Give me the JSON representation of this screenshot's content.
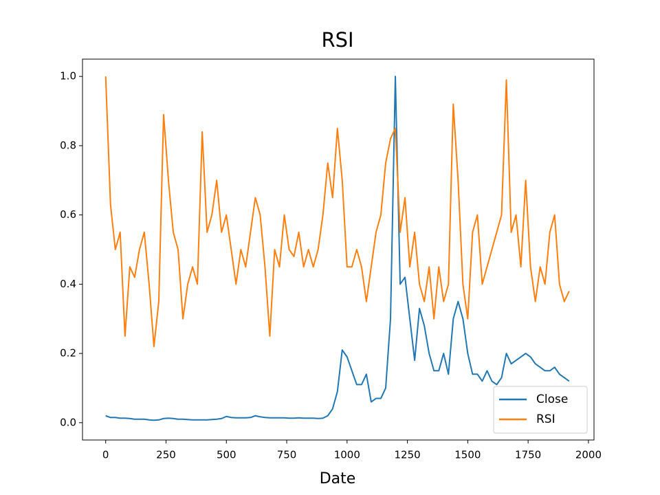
{
  "chart_data": {
    "type": "line",
    "title": "RSI",
    "x_label": "Date",
    "x": [
      0,
      20,
      40,
      60,
      80,
      100,
      120,
      140,
      160,
      180,
      200,
      220,
      240,
      260,
      280,
      300,
      320,
      340,
      360,
      380,
      400,
      420,
      440,
      460,
      480,
      500,
      520,
      540,
      560,
      580,
      600,
      620,
      640,
      660,
      680,
      700,
      720,
      740,
      760,
      780,
      800,
      820,
      840,
      860,
      880,
      900,
      920,
      940,
      960,
      980,
      1000,
      1020,
      1040,
      1060,
      1080,
      1100,
      1120,
      1140,
      1160,
      1180,
      1200,
      1220,
      1240,
      1260,
      1280,
      1300,
      1320,
      1340,
      1360,
      1380,
      1400,
      1420,
      1440,
      1460,
      1480,
      1500,
      1520,
      1540,
      1560,
      1580,
      1600,
      1620,
      1640,
      1660,
      1680,
      1700,
      1720,
      1740,
      1760,
      1780,
      1800,
      1820,
      1840,
      1860,
      1880,
      1900,
      1920
    ],
    "series": [
      {
        "name": "Close",
        "color": "#1f77b4",
        "values": [
          0.02,
          0.015,
          0.015,
          0.013,
          0.013,
          0.012,
          0.01,
          0.01,
          0.01,
          0.008,
          0.007,
          0.008,
          0.012,
          0.013,
          0.012,
          0.01,
          0.01,
          0.009,
          0.008,
          0.008,
          0.008,
          0.008,
          0.009,
          0.01,
          0.012,
          0.018,
          0.015,
          0.014,
          0.014,
          0.014,
          0.015,
          0.02,
          0.017,
          0.015,
          0.014,
          0.014,
          0.014,
          0.014,
          0.013,
          0.013,
          0.014,
          0.013,
          0.013,
          0.013,
          0.012,
          0.013,
          0.02,
          0.04,
          0.09,
          0.21,
          0.19,
          0.15,
          0.11,
          0.11,
          0.14,
          0.06,
          0.07,
          0.07,
          0.1,
          0.3,
          1.0,
          0.4,
          0.42,
          0.3,
          0.18,
          0.33,
          0.28,
          0.2,
          0.15,
          0.15,
          0.2,
          0.14,
          0.3,
          0.35,
          0.3,
          0.2,
          0.14,
          0.14,
          0.12,
          0.15,
          0.12,
          0.11,
          0.13,
          0.2,
          0.17,
          0.18,
          0.19,
          0.2,
          0.19,
          0.17,
          0.16,
          0.15,
          0.15,
          0.16,
          0.14,
          0.13,
          0.12
        ]
      },
      {
        "name": "RSI",
        "color": "#ff7f0e",
        "values": [
          1.0,
          0.63,
          0.5,
          0.55,
          0.25,
          0.45,
          0.42,
          0.5,
          0.55,
          0.4,
          0.22,
          0.35,
          0.89,
          0.7,
          0.55,
          0.5,
          0.3,
          0.4,
          0.45,
          0.4,
          0.84,
          0.55,
          0.6,
          0.7,
          0.55,
          0.6,
          0.5,
          0.4,
          0.5,
          0.45,
          0.55,
          0.65,
          0.6,
          0.45,
          0.25,
          0.5,
          0.45,
          0.6,
          0.5,
          0.48,
          0.55,
          0.45,
          0.5,
          0.45,
          0.5,
          0.6,
          0.75,
          0.65,
          0.85,
          0.7,
          0.45,
          0.45,
          0.5,
          0.45,
          0.35,
          0.45,
          0.55,
          0.6,
          0.75,
          0.82,
          0.85,
          0.55,
          0.65,
          0.45,
          0.55,
          0.4,
          0.35,
          0.45,
          0.3,
          0.45,
          0.35,
          0.4,
          0.92,
          0.7,
          0.4,
          0.3,
          0.55,
          0.6,
          0.4,
          0.45,
          0.5,
          0.55,
          0.6,
          0.99,
          0.55,
          0.6,
          0.45,
          0.7,
          0.45,
          0.35,
          0.45,
          0.4,
          0.55,
          0.6,
          0.4,
          0.35,
          0.38
        ]
      }
    ],
    "xlim": [
      -96,
      2023
    ],
    "ylim": [
      -0.05,
      1.05
    ],
    "xticks": [
      0,
      250,
      500,
      750,
      1000,
      1250,
      1500,
      1750,
      2000
    ],
    "yticks": [
      {
        "value": 0,
        "label": "0.0"
      },
      0.2,
      0.4,
      0.6,
      0.8,
      {
        "value": 1,
        "label": "1.0"
      }
    ],
    "grid": false,
    "legend": "lower right"
  }
}
